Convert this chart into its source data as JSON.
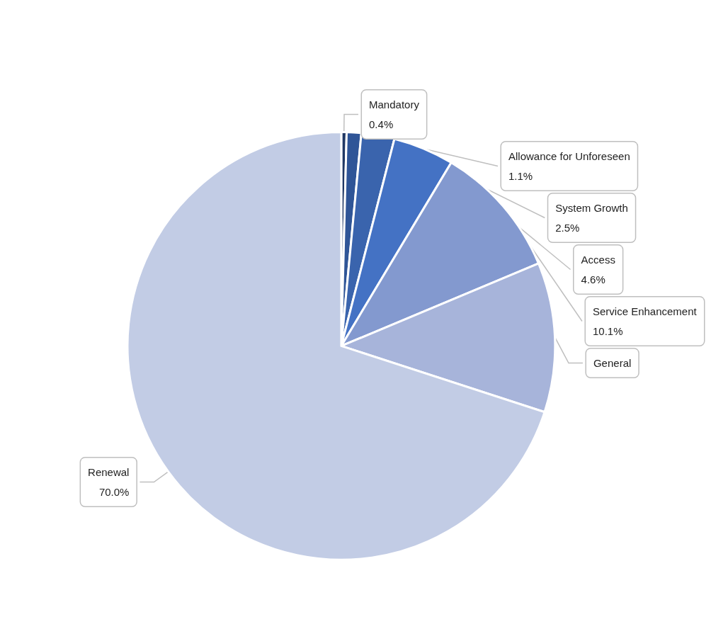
{
  "chart_data": {
    "type": "pie",
    "categories": [
      "Mandatory",
      "Allowance for Unforeseen",
      "System Growth",
      "Access",
      "Service Enhancement",
      "General",
      "Renewal"
    ],
    "values": [
      0.4,
      1.1,
      2.5,
      4.6,
      10.1,
      11.3,
      70.0
    ],
    "value_labels": [
      "0.4%",
      "1.1%",
      "2.5%",
      "4.6%",
      "10.1%",
      null,
      "70.0%"
    ],
    "colors": [
      "#203864",
      "#2f5597",
      "#3a64ad",
      "#4472c4",
      "#8399cf",
      "#a7b4da",
      "#c2cce5"
    ],
    "legend": false
  }
}
